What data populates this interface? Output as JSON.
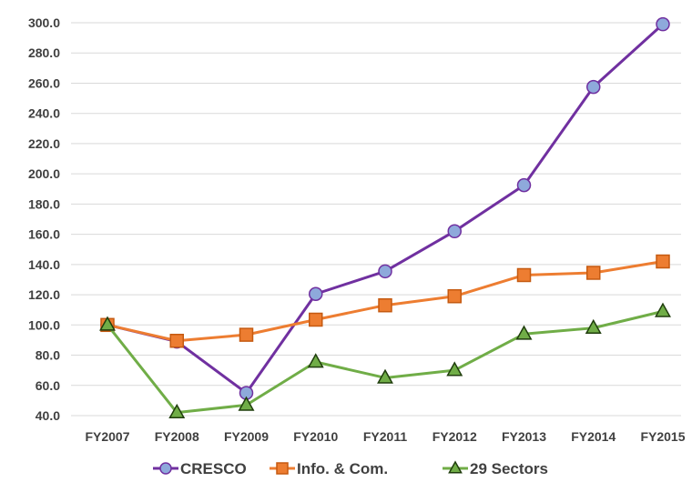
{
  "chart_data": {
    "type": "line",
    "title": "",
    "xlabel": "",
    "ylabel": "",
    "categories": [
      "FY2007",
      "FY2008",
      "FY2009",
      "FY2010",
      "FY2011",
      "FY2012",
      "FY2013",
      "FY2014",
      "FY2015"
    ],
    "ylim": [
      40.0,
      300.0
    ],
    "yticks": [
      "40.0",
      "60.0",
      "80.0",
      "100.0",
      "120.0",
      "140.0",
      "160.0",
      "180.0",
      "200.0",
      "220.0",
      "240.0",
      "260.0",
      "280.0",
      "300.0"
    ],
    "grid": true,
    "legend_position": "bottom",
    "series": [
      {
        "name": "CRESCO",
        "values": [
          100.0,
          89.0,
          55.0,
          120.5,
          135.5,
          162.0,
          192.5,
          257.5,
          299.0
        ],
        "line_color": "#7030A0",
        "marker": "circle",
        "marker_fill": "#8EA9DB",
        "marker_stroke": "#7030A0"
      },
      {
        "name": "Info. & Com.",
        "values": [
          100.0,
          89.5,
          93.5,
          103.5,
          113.0,
          119.0,
          133.0,
          134.5,
          142.0
        ],
        "line_color": "#ED7D31",
        "marker": "square",
        "marker_fill": "#ED7D31",
        "marker_stroke": "#C55A11"
      },
      {
        "name": "29 Sectors",
        "values": [
          100.0,
          42.0,
          47.0,
          75.5,
          65.0,
          70.0,
          94.0,
          98.0,
          109.0
        ],
        "line_color": "#70AD47",
        "marker": "triangle",
        "marker_fill": "#70AD47",
        "marker_stroke": "#1F3D0C"
      }
    ]
  }
}
